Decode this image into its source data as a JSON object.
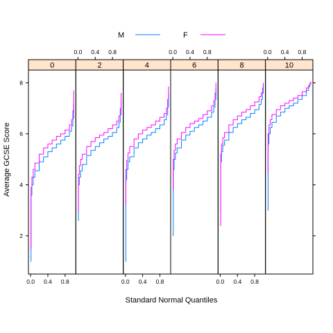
{
  "chart_data": {
    "type": "line",
    "title": "",
    "xlabel": "Standard Normal Quantiles",
    "ylabel": "Average GCSE Score",
    "xlim": [
      -0.05,
      1.05
    ],
    "ylim": [
      0.5,
      8.5
    ],
    "x_ticks": [
      0.0,
      0.4,
      0.8
    ],
    "x_tick_labels": [
      "0.0",
      "0.4",
      "0.8"
    ],
    "y_ticks": [
      2,
      4,
      6,
      8
    ],
    "y_tick_labels": [
      "2",
      "4",
      "6",
      "8"
    ],
    "legend": {
      "position": "top",
      "entries": [
        {
          "name": "M",
          "color": "#0080ff"
        },
        {
          "name": "F",
          "color": "#ff00ff"
        }
      ]
    },
    "panels": [
      {
        "strip": "0",
        "series": [
          {
            "name": "M",
            "color": "#0080ff",
            "x": [
              0.0,
              0.01,
              0.03,
              0.06,
              0.1,
              0.2,
              0.3,
              0.4,
              0.5,
              0.6,
              0.7,
              0.8,
              0.9,
              0.95,
              0.98,
              1.0
            ],
            "y": [
              1.0,
              3.6,
              4.0,
              4.3,
              4.55,
              4.9,
              5.1,
              5.3,
              5.45,
              5.6,
              5.75,
              5.9,
              6.1,
              6.3,
              6.6,
              7.2
            ]
          },
          {
            "name": "F",
            "color": "#ff00ff",
            "x": [
              0.0,
              0.01,
              0.03,
              0.06,
              0.1,
              0.2,
              0.3,
              0.4,
              0.5,
              0.6,
              0.7,
              0.8,
              0.9,
              0.95,
              0.98,
              1.0
            ],
            "y": [
              1.5,
              3.9,
              4.3,
              4.6,
              4.85,
              5.2,
              5.45,
              5.6,
              5.75,
              5.9,
              6.0,
              6.15,
              6.35,
              6.55,
              6.9,
              7.7
            ]
          }
        ]
      },
      {
        "strip": "2",
        "series": [
          {
            "name": "M",
            "color": "#0080ff",
            "x": [
              0.0,
              0.01,
              0.03,
              0.06,
              0.1,
              0.2,
              0.3,
              0.4,
              0.5,
              0.6,
              0.7,
              0.8,
              0.9,
              0.95,
              0.98,
              1.0
            ],
            "y": [
              2.6,
              4.0,
              4.3,
              4.55,
              4.8,
              5.15,
              5.35,
              5.5,
              5.65,
              5.8,
              5.9,
              6.05,
              6.25,
              6.45,
              6.75,
              7.3
            ]
          },
          {
            "name": "F",
            "color": "#ff00ff",
            "x": [
              0.0,
              0.01,
              0.03,
              0.06,
              0.1,
              0.2,
              0.3,
              0.4,
              0.5,
              0.6,
              0.7,
              0.8,
              0.9,
              0.95,
              0.98,
              1.0
            ],
            "y": [
              3.0,
              4.4,
              4.75,
              5.0,
              5.2,
              5.5,
              5.7,
              5.85,
              5.95,
              6.05,
              6.2,
              6.35,
              6.5,
              6.7,
              7.0,
              7.6
            ]
          }
        ]
      },
      {
        "strip": "4",
        "series": [
          {
            "name": "M",
            "color": "#0080ff",
            "x": [
              0.0,
              0.01,
              0.03,
              0.06,
              0.1,
              0.2,
              0.3,
              0.4,
              0.5,
              0.6,
              0.7,
              0.8,
              0.9,
              0.95,
              0.98,
              1.0
            ],
            "y": [
              1.0,
              4.2,
              4.6,
              4.9,
              5.1,
              5.45,
              5.65,
              5.8,
              5.95,
              6.05,
              6.2,
              6.35,
              6.55,
              6.75,
              7.05,
              7.6
            ]
          },
          {
            "name": "F",
            "color": "#ff00ff",
            "x": [
              0.0,
              0.01,
              0.03,
              0.06,
              0.1,
              0.2,
              0.3,
              0.4,
              0.5,
              0.6,
              0.7,
              0.8,
              0.9,
              0.95,
              0.98,
              1.0
            ],
            "y": [
              3.2,
              4.6,
              4.95,
              5.25,
              5.5,
              5.8,
              6.0,
              6.15,
              6.25,
              6.35,
              6.5,
              6.65,
              6.8,
              7.0,
              7.35,
              7.85
            ]
          }
        ]
      },
      {
        "strip": "6",
        "series": [
          {
            "name": "M",
            "color": "#0080ff",
            "x": [
              0.0,
              0.01,
              0.03,
              0.06,
              0.1,
              0.2,
              0.3,
              0.4,
              0.5,
              0.6,
              0.7,
              0.8,
              0.9,
              0.95,
              0.98,
              1.0
            ],
            "y": [
              2.0,
              4.6,
              5.0,
              5.25,
              5.45,
              5.75,
              5.95,
              6.1,
              6.25,
              6.35,
              6.5,
              6.65,
              6.85,
              7.05,
              7.35,
              7.8
            ]
          },
          {
            "name": "F",
            "color": "#ff00ff",
            "x": [
              0.0,
              0.01,
              0.03,
              0.06,
              0.1,
              0.2,
              0.3,
              0.4,
              0.5,
              0.6,
              0.7,
              0.8,
              0.9,
              0.95,
              0.98,
              1.0
            ],
            "y": [
              3.8,
              5.0,
              5.35,
              5.6,
              5.8,
              6.05,
              6.25,
              6.4,
              6.5,
              6.6,
              6.75,
              6.9,
              7.1,
              7.3,
              7.6,
              8.0
            ]
          }
        ]
      },
      {
        "strip": "8",
        "series": [
          {
            "name": "M",
            "color": "#0080ff",
            "x": [
              0.0,
              0.01,
              0.03,
              0.06,
              0.1,
              0.2,
              0.3,
              0.4,
              0.5,
              0.6,
              0.7,
              0.8,
              0.9,
              0.95,
              0.98,
              1.0
            ],
            "y": [
              3.0,
              4.9,
              5.3,
              5.55,
              5.75,
              6.05,
              6.25,
              6.4,
              6.55,
              6.65,
              6.8,
              6.95,
              7.15,
              7.35,
              7.6,
              7.95
            ]
          },
          {
            "name": "F",
            "color": "#ff00ff",
            "x": [
              0.0,
              0.01,
              0.03,
              0.06,
              0.1,
              0.2,
              0.3,
              0.4,
              0.5,
              0.6,
              0.7,
              0.8,
              0.9,
              0.95,
              0.98,
              1.0
            ],
            "y": [
              2.4,
              5.2,
              5.6,
              5.85,
              6.05,
              6.35,
              6.55,
              6.7,
              6.85,
              6.95,
              7.1,
              7.25,
              7.45,
              7.6,
              7.8,
              8.0
            ]
          }
        ]
      },
      {
        "strip": "10",
        "series": [
          {
            "name": "M",
            "color": "#0080ff",
            "x": [
              0.0,
              0.01,
              0.03,
              0.06,
              0.1,
              0.2,
              0.3,
              0.4,
              0.5,
              0.6,
              0.7,
              0.8,
              0.9,
              0.95,
              0.98,
              1.0
            ],
            "y": [
              3.0,
              5.6,
              6.0,
              6.25,
              6.45,
              6.7,
              6.85,
              7.0,
              7.1,
              7.2,
              7.35,
              7.5,
              7.7,
              7.85,
              7.95,
              8.0
            ]
          },
          {
            "name": "F",
            "color": "#ff00ff",
            "x": [
              0.0,
              0.01,
              0.03,
              0.06,
              0.1,
              0.2,
              0.3,
              0.4,
              0.5,
              0.6,
              0.7,
              0.8,
              0.9,
              0.95,
              0.98,
              1.0
            ],
            "y": [
              4.5,
              6.0,
              6.35,
              6.55,
              6.75,
              6.95,
              7.1,
              7.2,
              7.3,
              7.4,
              7.5,
              7.65,
              7.8,
              7.9,
              7.98,
              8.05
            ]
          }
        ]
      }
    ]
  }
}
